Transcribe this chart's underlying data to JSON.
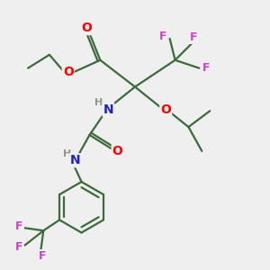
{
  "bg_color": "#efefef",
  "bond_color": "#3a6b3a",
  "bond_width": 1.6,
  "atom_colors": {
    "C": "#3a6b3a",
    "O": "#ff0000",
    "N": "#2020cc",
    "F": "#cc44cc",
    "H": "#8a9a8a"
  },
  "xlim": [
    0,
    10
  ],
  "ylim": [
    0,
    10
  ],
  "figsize": [
    3.0,
    3.0
  ],
  "dpi": 100
}
